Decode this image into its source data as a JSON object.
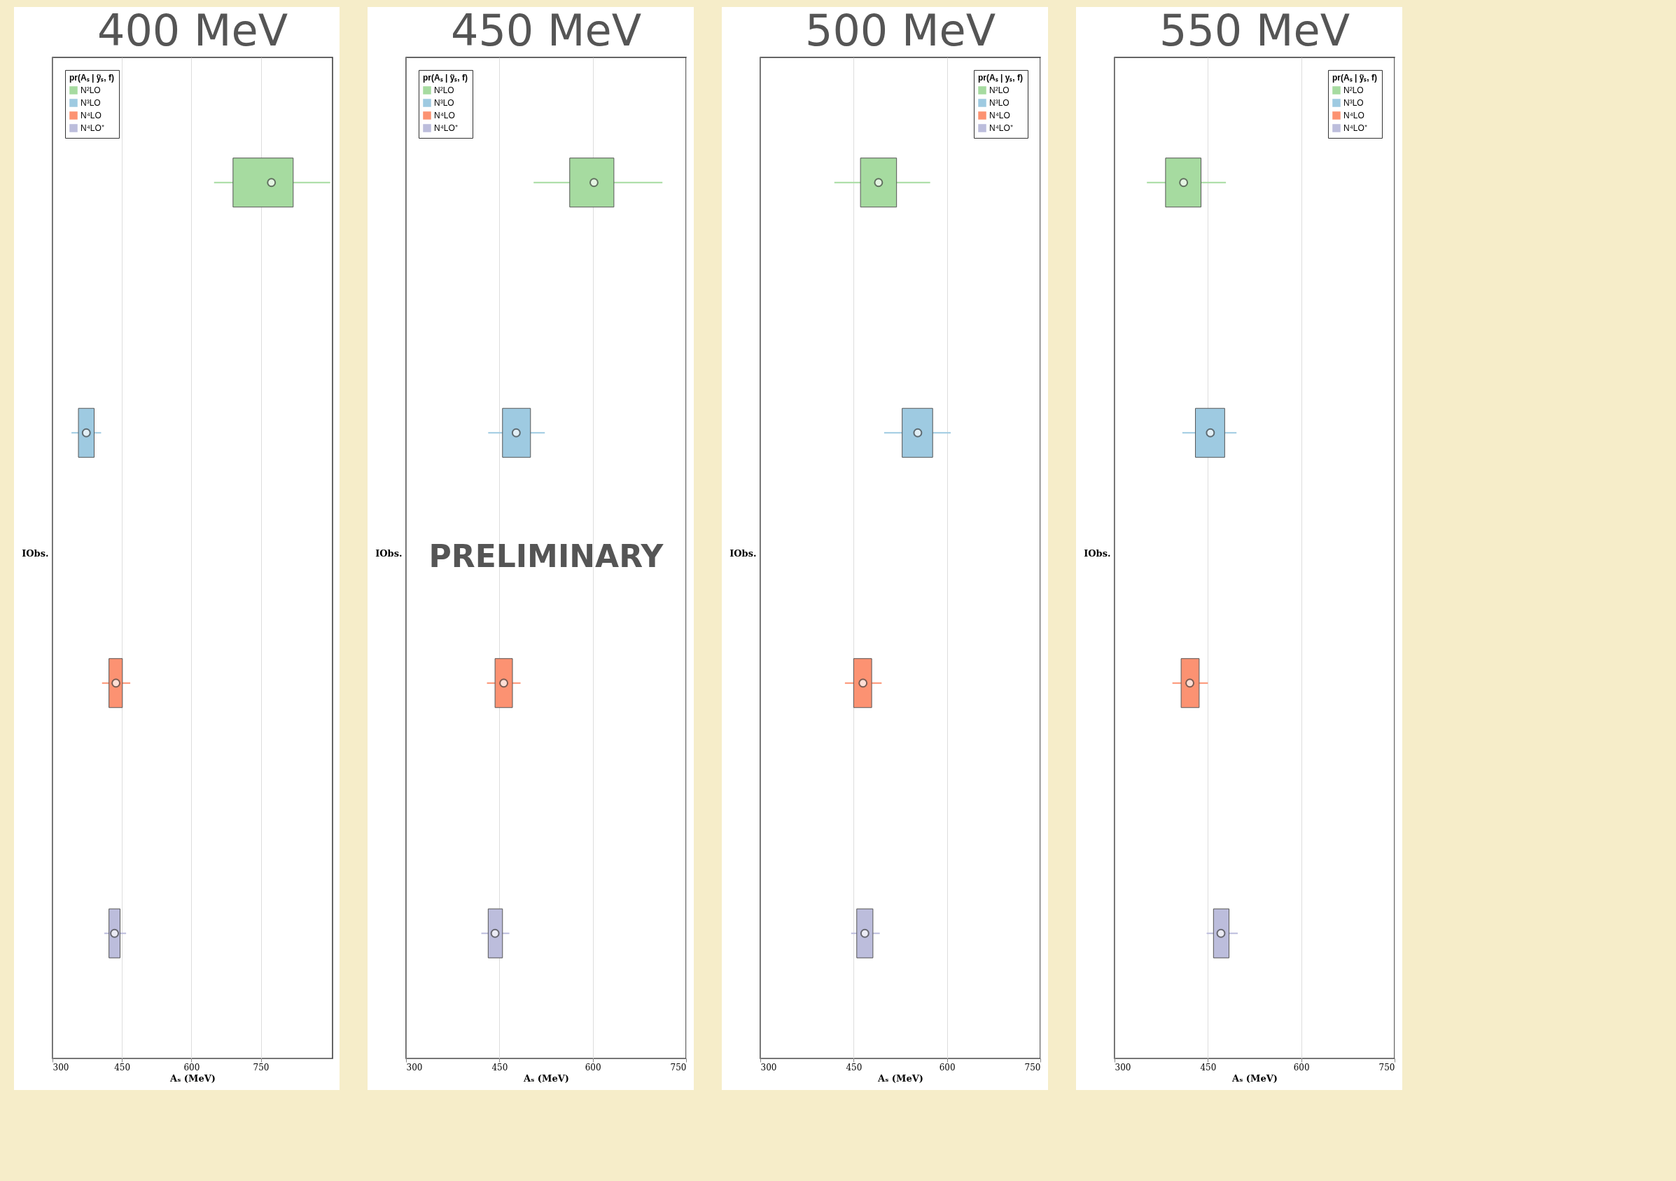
{
  "chart_data": [
    {
      "type": "box",
      "title": "400 MeV",
      "orientation": "horizontal",
      "xlabel": "Aₛ (MeV)",
      "ylabel": "IObs.",
      "legend_title": "pr(Aₛ | ỹₛ, f)",
      "legend": "top left",
      "grid": "x",
      "categories": [
        null,
        null,
        null,
        null
      ],
      "xlim": [
        300,
        905
      ],
      "xticks": [
        300,
        450,
        600,
        750
      ],
      "series": [
        {
          "name": "N²LO",
          "color": "#a6dba0",
          "boxes": [
            {
              "low": 649,
              "q1": 690,
              "median": 773,
              "q3": 820,
              "high": 900
            },
            null,
            null,
            null
          ]
        },
        {
          "name": "N³LO",
          "color": "#9ecae1",
          "boxes": [
            null,
            {
              "low": 341,
              "q1": 356,
              "median": 373,
              "q3": 390,
              "high": 405
            },
            null,
            null
          ]
        },
        {
          "name": "N⁴LO",
          "color": "#fc9272",
          "boxes": [
            null,
            null,
            {
              "low": 407,
              "q1": 422,
              "median": 437,
              "q3": 451,
              "high": 468
            },
            null
          ]
        },
        {
          "name": "N⁴LO⁺",
          "color": "#bcbddc",
          "boxes": [
            null,
            null,
            null,
            {
              "low": 412,
              "q1": 422,
              "median": 434,
              "q3": 446,
              "high": 459
            }
          ]
        }
      ]
    },
    {
      "type": "box",
      "title": "450 MeV",
      "orientation": "horizontal",
      "xlabel": "Aₛ (MeV)",
      "ylabel": "IObs.",
      "legend_title": "pr(Aₛ | ỹₛ, f)",
      "legend": "top left",
      "grid": "x",
      "categories": [
        null,
        null,
        null,
        null
      ],
      "xlim": [
        300,
        750
      ],
      "xticks": [
        300,
        450,
        600,
        750
      ],
      "annotations": [
        "PRELIMINARY"
      ],
      "series": [
        {
          "name": "N²LO",
          "color": "#a6dba0",
          "boxes": [
            {
              "low": 505,
              "q1": 563,
              "median": 602,
              "q3": 634,
              "high": 712
            },
            null,
            null,
            null
          ]
        },
        {
          "name": "N³LO",
          "color": "#9ecae1",
          "boxes": [
            null,
            {
              "low": 432,
              "q1": 455,
              "median": 477,
              "q3": 500,
              "high": 523
            },
            null,
            null
          ]
        },
        {
          "name": "N⁴LO",
          "color": "#fc9272",
          "boxes": [
            null,
            null,
            {
              "low": 430,
              "q1": 443,
              "median": 457,
              "q3": 471,
              "high": 484
            },
            null
          ]
        },
        {
          "name": "N⁴LO⁺",
          "color": "#bcbddc",
          "boxes": [
            null,
            null,
            null,
            {
              "low": 421,
              "q1": 432,
              "median": 443,
              "q3": 455,
              "high": 466
            }
          ]
        }
      ]
    },
    {
      "type": "box",
      "title": "500 MeV",
      "orientation": "horizontal",
      "xlabel": "Aₛ (MeV)",
      "ylabel": "IObs.",
      "legend_title": "pr(Aₛ | yₛ, f)",
      "legend": "top right",
      "grid": "x",
      "categories": [
        null,
        null,
        null,
        null
      ],
      "xlim": [
        300,
        750
      ],
      "xticks": [
        300,
        450,
        600,
        750
      ],
      "series": [
        {
          "name": "N²LO",
          "color": "#a6dba0",
          "boxes": [
            {
              "low": 419,
              "q1": 461,
              "median": 490,
              "q3": 519,
              "high": 573
            },
            null,
            null,
            null
          ]
        },
        {
          "name": "N³LO",
          "color": "#9ecae1",
          "boxes": [
            null,
            {
              "low": 499,
              "q1": 528,
              "median": 553,
              "q3": 577,
              "high": 606
            },
            null,
            null
          ]
        },
        {
          "name": "N⁴LO",
          "color": "#fc9272",
          "boxes": [
            null,
            null,
            {
              "low": 436,
              "q1": 450,
              "median": 465,
              "q3": 479,
              "high": 495
            },
            null
          ]
        },
        {
          "name": "N⁴LO⁺",
          "color": "#bcbddc",
          "boxes": [
            null,
            null,
            null,
            {
              "low": 446,
              "q1": 455,
              "median": 468,
              "q3": 481,
              "high": 492
            }
          ]
        }
      ]
    },
    {
      "type": "box",
      "title": "550 MeV",
      "orientation": "horizontal",
      "xlabel": "Aₛ (MeV)",
      "ylabel": "IObs.",
      "legend_title": "pr(Aₛ | ỹₛ, f)",
      "legend": "top right",
      "grid": "x",
      "categories": [
        null,
        null,
        null,
        null
      ],
      "xlim": [
        300,
        750
      ],
      "xticks": [
        300,
        450,
        600,
        750
      ],
      "series": [
        {
          "name": "N²LO",
          "color": "#a6dba0",
          "boxes": [
            {
              "low": 352,
              "q1": 382,
              "median": 411,
              "q3": 439,
              "high": 479
            },
            null,
            null,
            null
          ]
        },
        {
          "name": "N³LO",
          "color": "#9ecae1",
          "boxes": [
            null,
            {
              "low": 409,
              "q1": 430,
              "median": 454,
              "q3": 477,
              "high": 496
            },
            null,
            null
          ]
        },
        {
          "name": "N⁴LO",
          "color": "#fc9272",
          "boxes": [
            null,
            null,
            {
              "low": 393,
              "q1": 407,
              "median": 421,
              "q3": 436,
              "high": 450
            },
            null
          ]
        },
        {
          "name": "N⁴LO⁺",
          "color": "#bcbddc",
          "boxes": [
            null,
            null,
            null,
            {
              "low": 448,
              "q1": 459,
              "median": 471,
              "q3": 484,
              "high": 498
            }
          ]
        }
      ]
    }
  ]
}
